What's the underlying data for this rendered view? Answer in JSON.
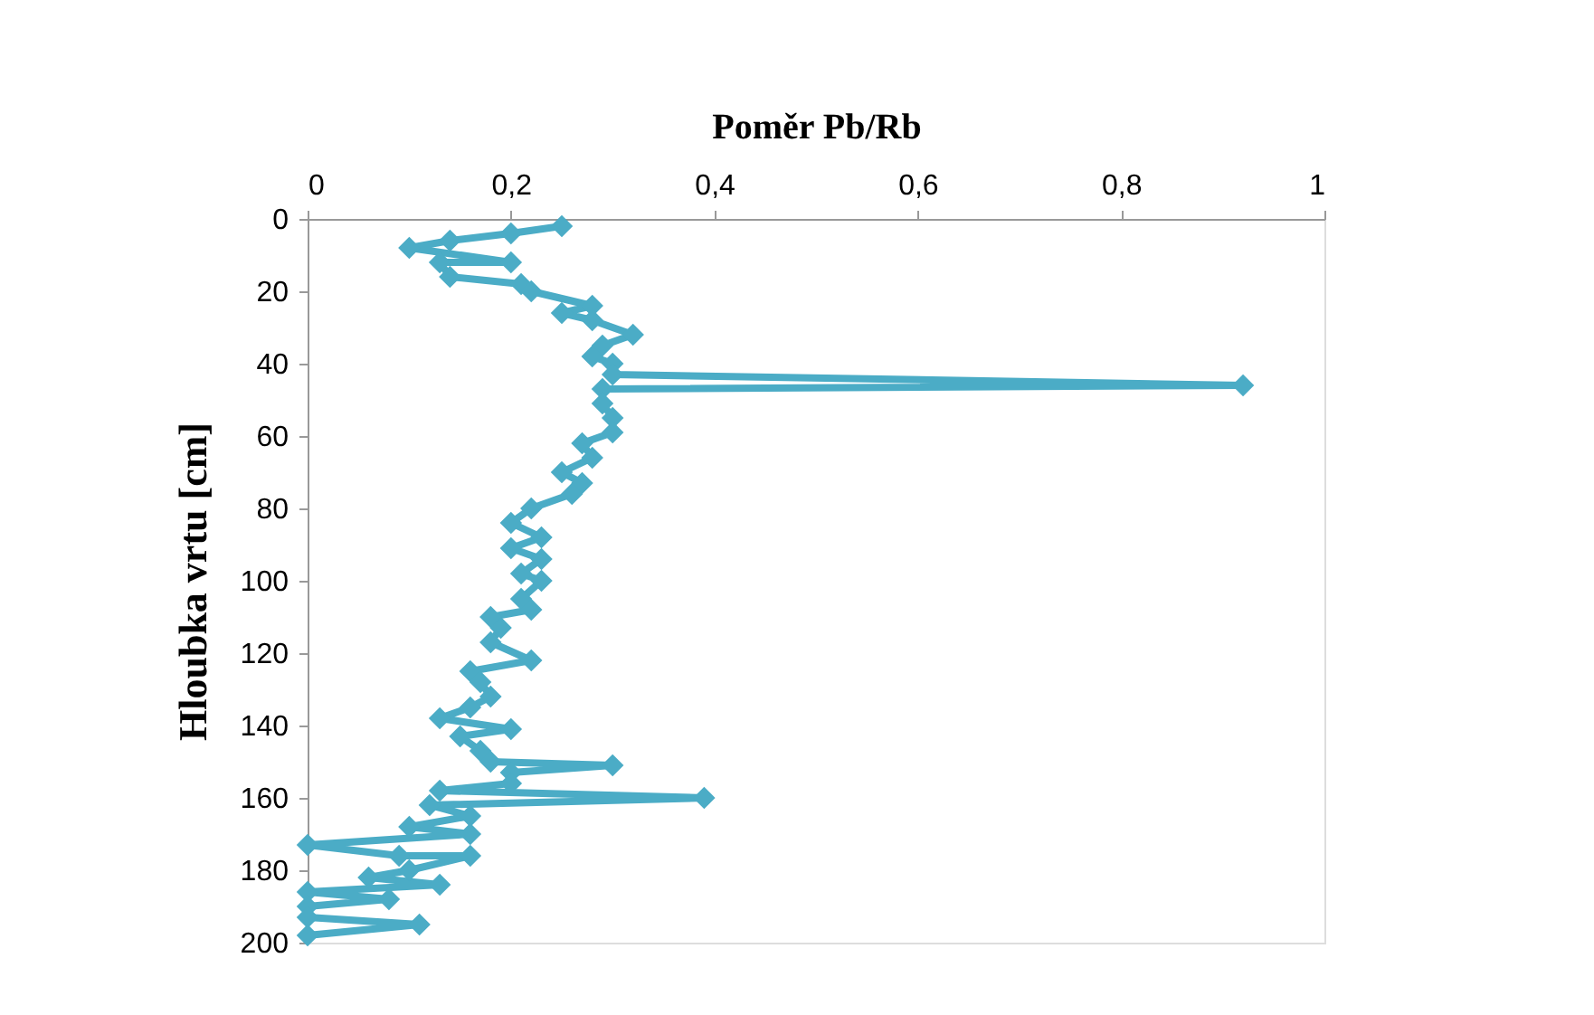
{
  "chart_data": {
    "type": "line",
    "xlabel": "Poměr Pb/Rb",
    "ylabel": "Hloubka vrtu [cm]",
    "xlim": [
      0,
      1
    ],
    "xticks": [
      0,
      {
        "value": 0.2,
        "label": "0,2"
      },
      {
        "value": 0.4,
        "label": "0,4"
      },
      {
        "value": 0.6,
        "label": "0,6"
      },
      {
        "value": 0.8,
        "label": "0,8"
      },
      1
    ],
    "ylim": [
      200,
      0
    ],
    "yticks": [
      0,
      20,
      40,
      60,
      80,
      100,
      120,
      140,
      160,
      180,
      200
    ],
    "marker": "diamond",
    "line_style": "solid",
    "grid": false,
    "series": [
      {
        "color": "#4bacc6",
        "x": [
          0.25,
          0.2,
          0.14,
          0.1,
          0.2,
          0.13,
          0.14,
          0.21,
          0.22,
          0.28,
          0.25,
          0.28,
          0.32,
          0.29,
          0.28,
          0.3,
          0.3,
          0.92,
          0.29,
          0.29,
          0.3,
          0.3,
          0.27,
          0.28,
          0.25,
          0.27,
          0.26,
          0.22,
          0.2,
          0.23,
          0.2,
          0.23,
          0.21,
          0.23,
          0.21,
          0.22,
          0.18,
          0.19,
          0.18,
          0.22,
          0.16,
          0.17,
          0.18,
          0.16,
          0.13,
          0.2,
          0.15,
          0.17,
          0.18,
          0.3,
          0.2,
          0.2,
          0.13,
          0.39,
          0.12,
          0.16,
          0.1,
          0.16,
          0.0,
          0.09,
          0.16,
          0.1,
          0.06,
          0.13,
          0.0,
          0.08,
          0.0,
          0.0,
          0.11,
          0.0
        ],
        "values": [
          2,
          4,
          6,
          8,
          12,
          12,
          16,
          18,
          20,
          24,
          26,
          28,
          32,
          35,
          38,
          40,
          43,
          46,
          47,
          51,
          55,
          59,
          62,
          66,
          70,
          73,
          76,
          80,
          84,
          88,
          91,
          94,
          98,
          100,
          105,
          108,
          110,
          113,
          117,
          122,
          125,
          128,
          132,
          135,
          138,
          141,
          143,
          147,
          150,
          151,
          153,
          156,
          158,
          160,
          162,
          165,
          168,
          170,
          173,
          176,
          176,
          180,
          182,
          184,
          186,
          188,
          190,
          193,
          195,
          198
        ]
      }
    ]
  }
}
